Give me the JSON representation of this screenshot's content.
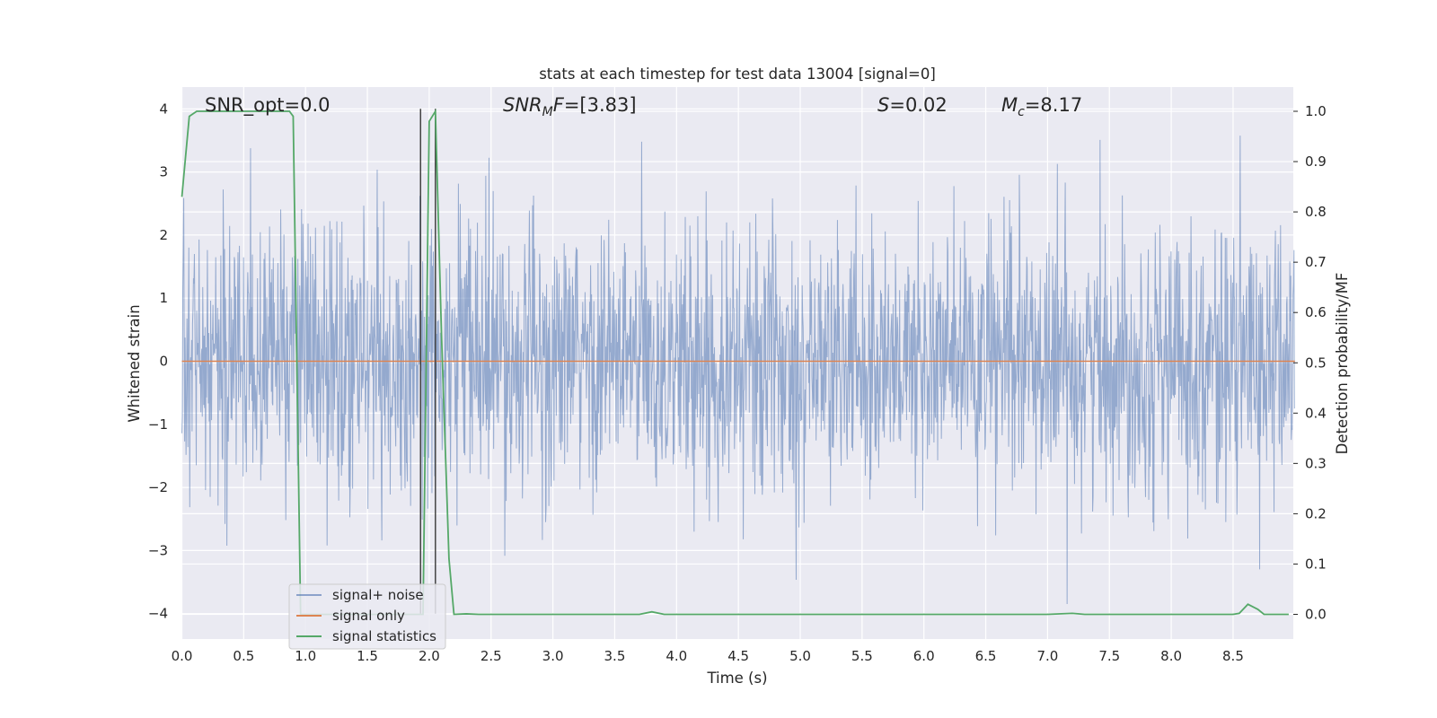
{
  "chart_data": {
    "type": "line",
    "title": "stats at each timestep for test data 13004 [signal=0]",
    "xlabel": "Time (s)",
    "ylabel": "Whitened strain",
    "y2label": "Detection probability/MF",
    "xlim": [
      0.0,
      9.0
    ],
    "ylim": [
      -4.4,
      4.4
    ],
    "y2lim": [
      -0.05,
      1.05
    ],
    "xticks": [
      "0.0",
      "0.5",
      "1.0",
      "1.5",
      "2.0",
      "2.5",
      "3.0",
      "3.5",
      "4.0",
      "4.5",
      "5.0",
      "5.5",
      "6.0",
      "6.5",
      "7.0",
      "7.5",
      "8.0",
      "8.5"
    ],
    "xtick_values": [
      0.0,
      0.5,
      1.0,
      1.5,
      2.0,
      2.5,
      3.0,
      3.5,
      4.0,
      4.5,
      5.0,
      5.5,
      6.0,
      6.5,
      7.0,
      7.5,
      8.0,
      8.5
    ],
    "yticks": [
      "−4",
      "−3",
      "−2",
      "−1",
      "0",
      "1",
      "2",
      "3",
      "4"
    ],
    "ytick_values": [
      -4,
      -3,
      -2,
      -1,
      0,
      1,
      2,
      3,
      4
    ],
    "y2ticks": [
      "0.0",
      "0.1",
      "0.2",
      "0.3",
      "0.4",
      "0.5",
      "0.6",
      "0.7",
      "0.8",
      "0.9",
      "1.0"
    ],
    "y2tick_values": [
      0.0,
      0.1,
      0.2,
      0.3,
      0.4,
      0.5,
      0.6,
      0.7,
      0.8,
      0.9,
      1.0
    ],
    "grid": true,
    "legend_position": "lower-left",
    "annotations": {
      "snr_opt": "SNR_opt=0.0",
      "snr_mf": "=[3.83]",
      "s_stat": "=0.02",
      "mc": "=8.17"
    },
    "vertical_lines": [
      1.93,
      2.05
    ],
    "series": [
      {
        "name": "signal+ noise",
        "color": "#4c72b0",
        "description": "dense whitened noise roughly within -4 to 4, typical spread about ±1.5"
      },
      {
        "name": "signal only",
        "color": "#dd8452",
        "values_constant": 0.0
      },
      {
        "name": "signal statistics",
        "color": "#55a868",
        "axis": "right",
        "x": [
          0.0,
          0.06,
          0.12,
          0.2,
          0.5,
          0.8,
          0.87,
          0.9,
          0.96,
          1.0,
          1.5,
          1.88,
          1.92,
          1.95,
          2.0,
          2.05,
          2.1,
          2.16,
          2.2,
          2.3,
          2.4,
          3.0,
          3.7,
          3.8,
          3.9,
          4.5,
          5.0,
          6.0,
          7.0,
          7.2,
          7.3,
          8.0,
          8.5,
          8.55,
          8.62,
          8.7,
          8.75,
          8.95
        ],
        "y": [
          0.83,
          0.99,
          1.0,
          1.0,
          1.0,
          1.0,
          1.0,
          0.99,
          0.0,
          0.0,
          0.0,
          0.0,
          0.0,
          0.0,
          0.98,
          1.0,
          0.55,
          0.11,
          0.0,
          0.001,
          0.0,
          0.0,
          0.0,
          0.005,
          0.0,
          0.0,
          0.0,
          0.0,
          0.0,
          0.002,
          0.0,
          0.0,
          0.0,
          0.002,
          0.02,
          0.01,
          0.0,
          0.0
        ]
      }
    ]
  }
}
